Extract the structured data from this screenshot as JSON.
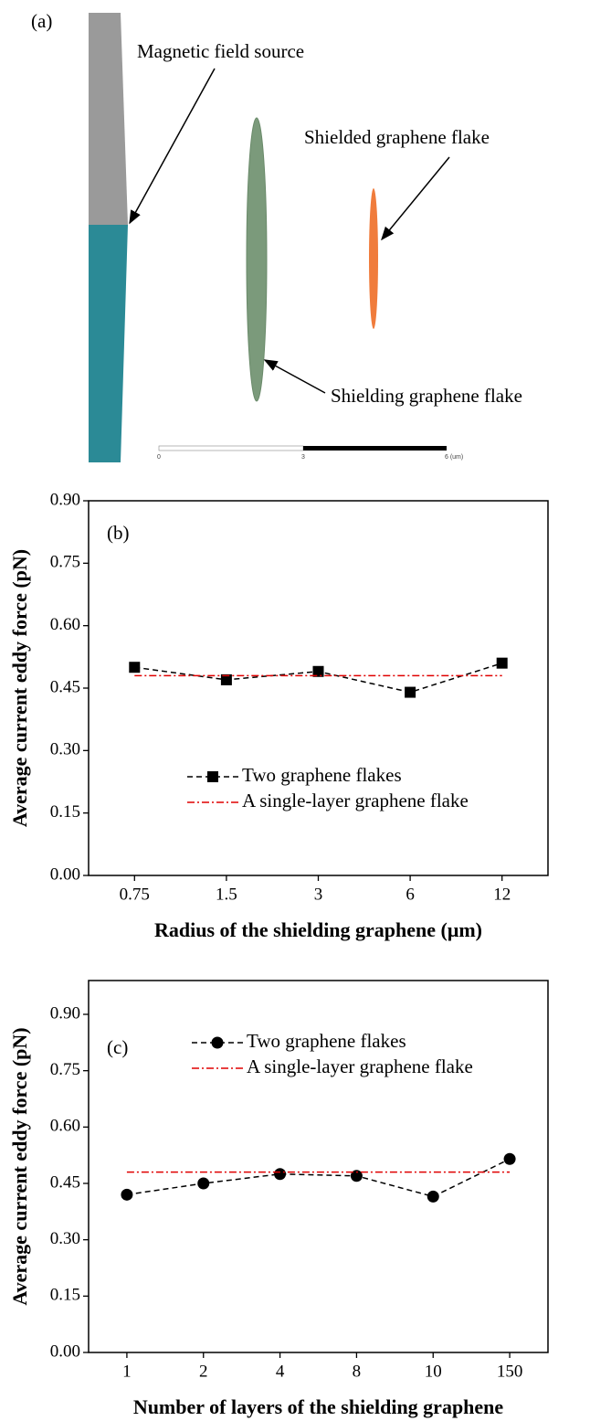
{
  "diagram": {
    "panel_label": "(a)",
    "labels": [
      "Magnetic field source",
      "Shielded graphene flake",
      "Shielding graphene flake"
    ],
    "scale_bar": [
      "0",
      "3",
      "6 (um)"
    ]
  },
  "chart_data": [
    {
      "type": "line",
      "panel_label": "(b)",
      "x_label": "Radius of the shielding graphene (μm)",
      "y_label": "Average current eddy force (pN)",
      "categories": [
        "0.75",
        "1.5",
        "3",
        "6",
        "12"
      ],
      "series": [
        {
          "name": "Two graphene flakes",
          "color": "#000000",
          "marker": "square",
          "line_style": "dashed",
          "values": [
            0.5,
            0.47,
            0.49,
            0.44,
            0.51
          ]
        },
        {
          "name": "A single-layer graphene flake",
          "color": "#e00000",
          "line_style": "dash-dot",
          "values": [
            0.48,
            0.48,
            0.48,
            0.48,
            0.48
          ]
        }
      ],
      "ylim": [
        0,
        0.9
      ],
      "yticks": [
        {
          "value": 0,
          "label": "0.00"
        },
        {
          "value": 0.15,
          "label": "0.15"
        },
        {
          "value": 0.3,
          "label": "0.30"
        },
        {
          "value": 0.45,
          "label": "0.45"
        },
        {
          "value": 0.6,
          "label": "0.60"
        },
        {
          "value": 0.75,
          "label": "0.75"
        },
        {
          "value": 0.9,
          "label": "0.90"
        }
      ],
      "legend": "lower center"
    },
    {
      "type": "line",
      "panel_label": "(c)",
      "x_label": "Number of layers of the shielding graphene",
      "y_label": "Average current eddy force (pN)",
      "categories": [
        "1",
        "2",
        "4",
        "8",
        "10",
        "150"
      ],
      "series": [
        {
          "name": "Two graphene flakes",
          "color": "#000000",
          "marker": "circle",
          "line_style": "dashed",
          "values": [
            0.42,
            0.45,
            0.475,
            0.47,
            0.415,
            0.515
          ]
        },
        {
          "name": "A single-layer graphene flake",
          "color": "#e00000",
          "line_style": "dash-dot",
          "values": [
            0.48,
            0.48,
            0.48,
            0.48,
            0.48,
            0.48
          ]
        }
      ],
      "ylim": [
        0,
        0.99
      ],
      "yticks": [
        {
          "value": 0,
          "label": "0.00"
        },
        {
          "value": 0.15,
          "label": "0.15"
        },
        {
          "value": 0.3,
          "label": "0.30"
        },
        {
          "value": 0.45,
          "label": "0.45"
        },
        {
          "value": 0.6,
          "label": "0.60"
        },
        {
          "value": 0.75,
          "label": "0.75"
        },
        {
          "value": 0.9,
          "label": "0.90"
        }
      ],
      "legend": "upper center"
    }
  ]
}
